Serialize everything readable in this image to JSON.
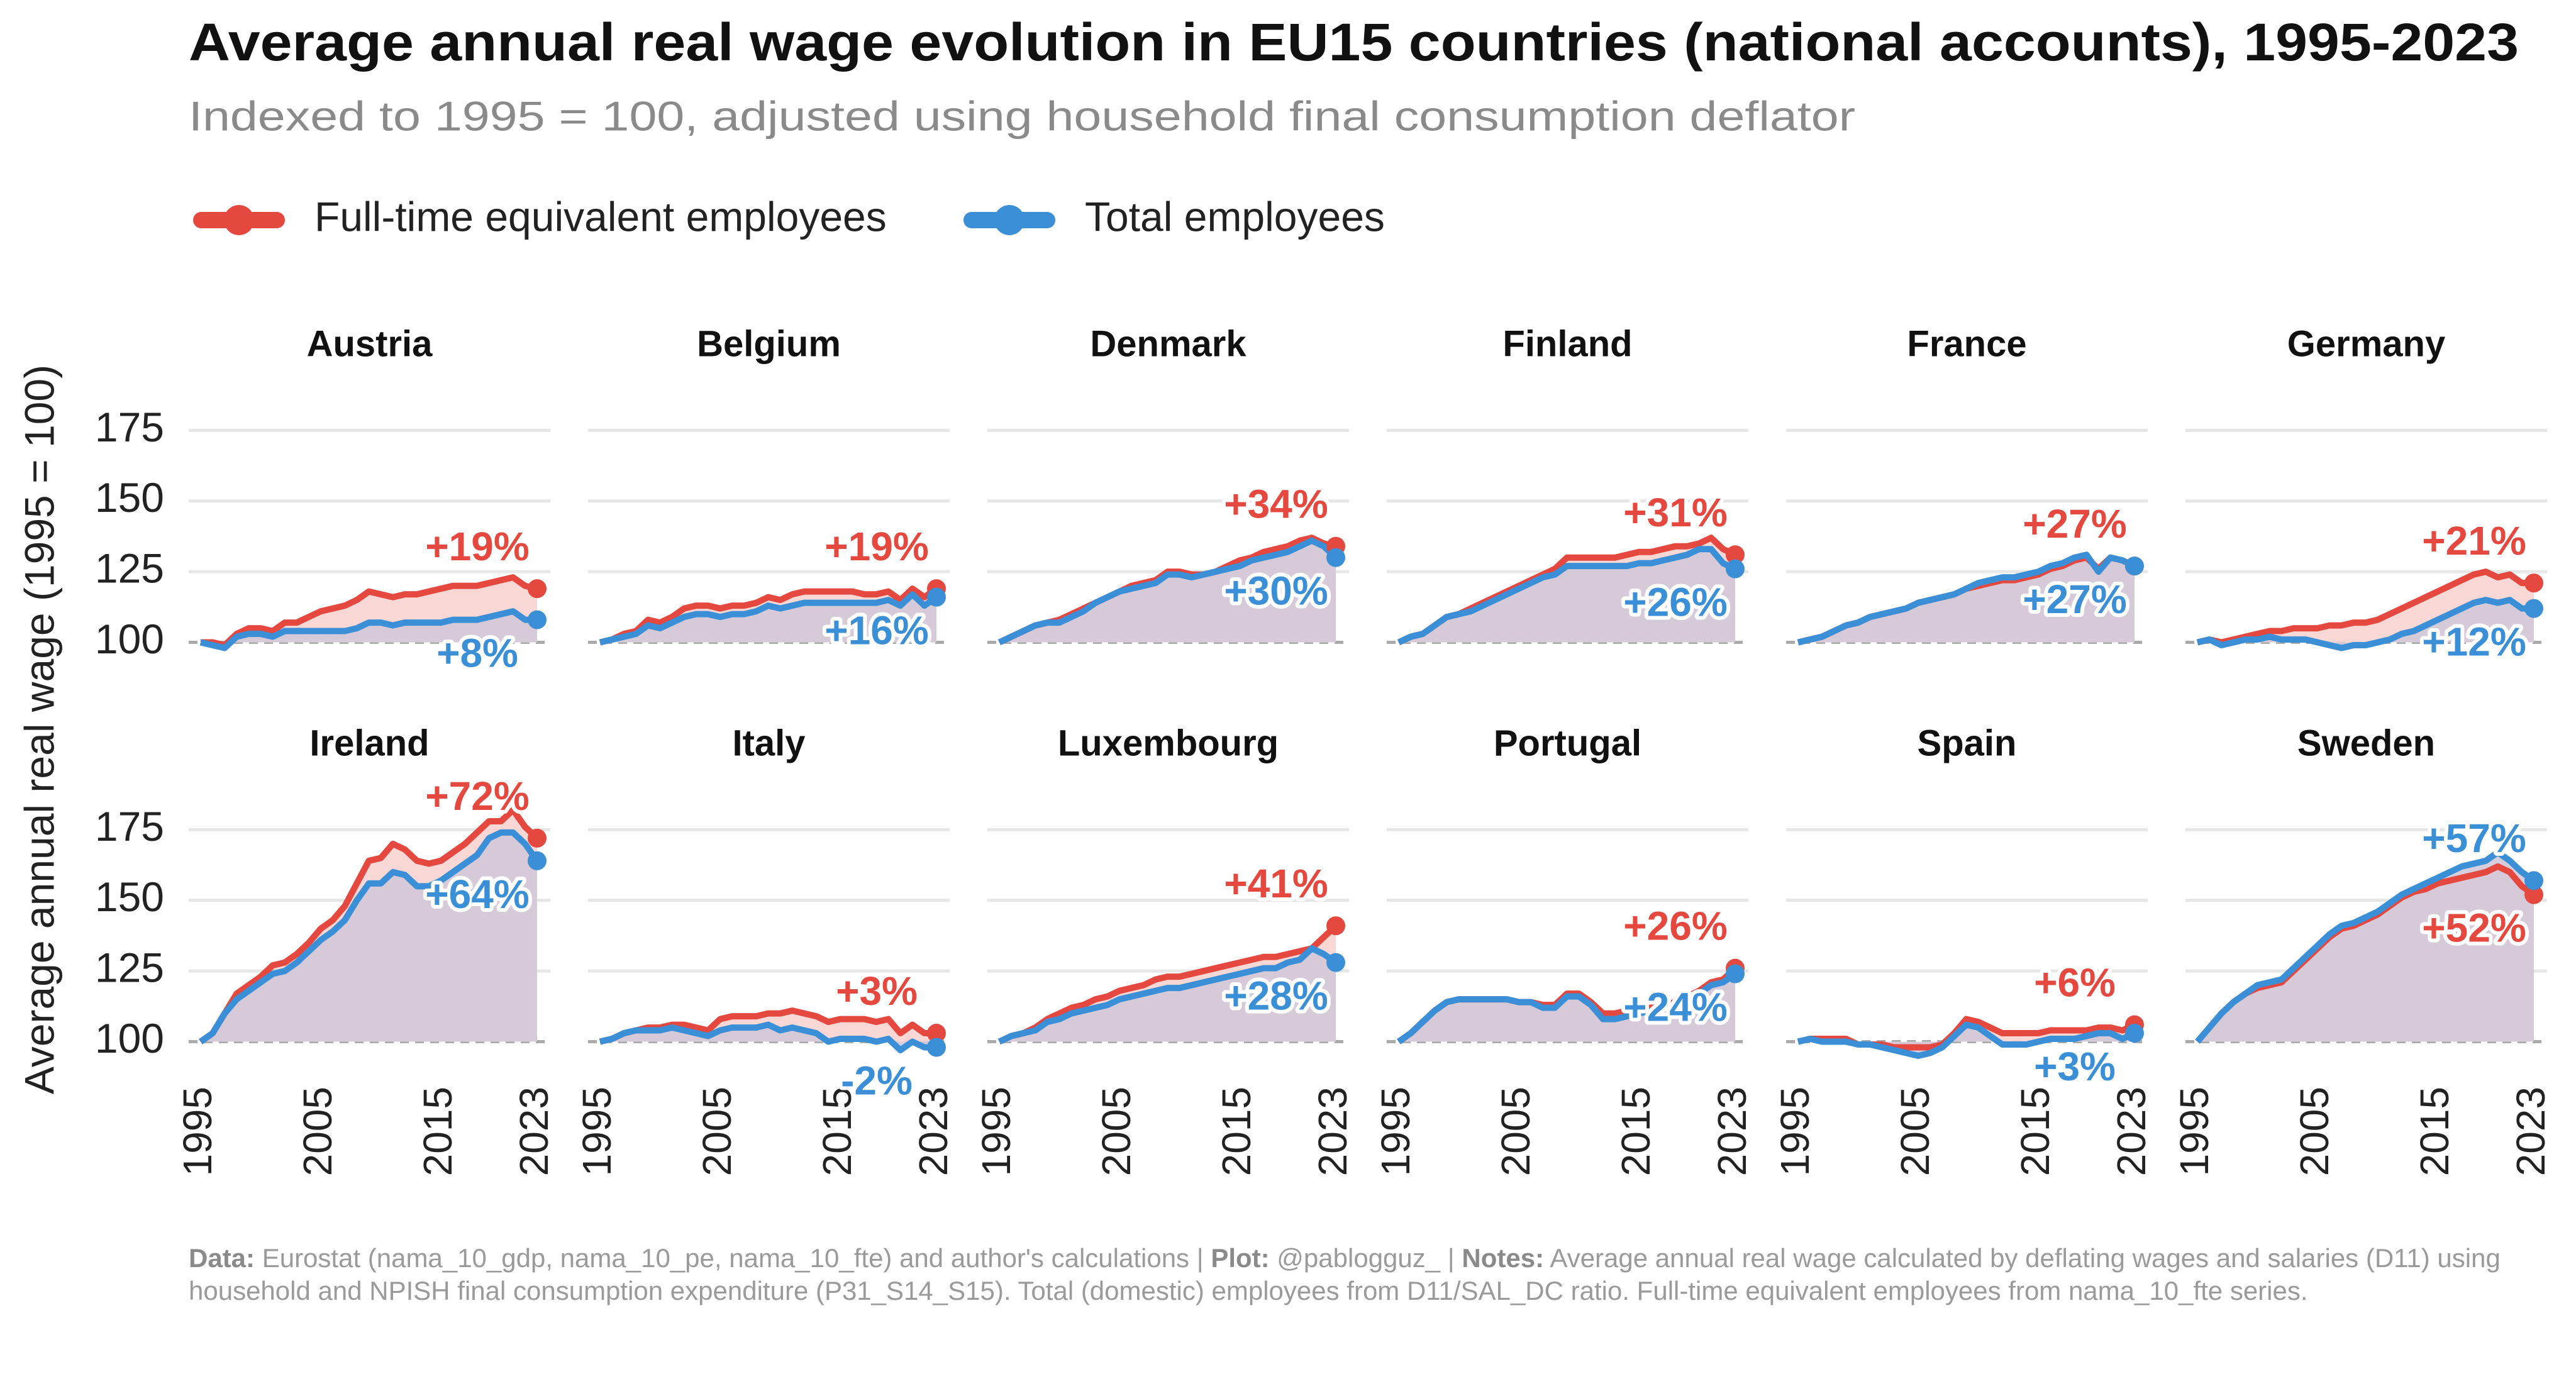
{
  "chart_data": {
    "type": "line",
    "title": "Average annual real wage evolution in EU15 countries (national accounts), 1995-2023",
    "subtitle": "Indexed to 1995 = 100, adjusted using household final consumption deflator",
    "y_label": "Average annual real wage (1995 = 100)",
    "legend": [
      {
        "name": "Full-time equivalent employees",
        "color": "#e5483e"
      },
      {
        "name": "Total employees",
        "color": "#3a8fd6"
      }
    ],
    "x": [
      1995,
      1996,
      1997,
      1998,
      1999,
      2000,
      2001,
      2002,
      2003,
      2004,
      2005,
      2006,
      2007,
      2008,
      2009,
      2010,
      2011,
      2012,
      2013,
      2014,
      2015,
      2016,
      2017,
      2018,
      2019,
      2020,
      2021,
      2022,
      2023
    ],
    "xlim": [
      1995,
      2023
    ],
    "xticks": [
      1995,
      2005,
      2015,
      2023
    ],
    "ylim": [
      93,
      188
    ],
    "yticks": [
      100,
      125,
      150,
      175
    ],
    "grid": true,
    "facets": [
      {
        "title": "Austria",
        "series": [
          {
            "values": [
              100,
              100,
              99,
              103,
              105,
              105,
              104,
              107,
              107,
              109,
              111,
              112,
              113,
              115,
              118,
              117,
              116,
              117,
              117,
              118,
              119,
              120,
              120,
              120,
              121,
              122,
              123,
              120,
              119
            ],
            "end_label": "+19%"
          },
          {
            "values": [
              100,
              99,
              98,
              102,
              103,
              103,
              102,
              104,
              104,
              104,
              104,
              104,
              104,
              105,
              107,
              107,
              106,
              107,
              107,
              107,
              107,
              108,
              108,
              108,
              109,
              110,
              111,
              108,
              108
            ],
            "end_label": "+8%"
          }
        ]
      },
      {
        "title": "Belgium",
        "series": [
          {
            "values": [
              100,
              101,
              103,
              104,
              108,
              107,
              109,
              112,
              113,
              113,
              112,
              113,
              113,
              114,
              116,
              115,
              117,
              118,
              118,
              118,
              118,
              118,
              117,
              117,
              118,
              115,
              119,
              116,
              119
            ],
            "end_label": "+19%"
          },
          {
            "values": [
              100,
              101,
              102,
              103,
              106,
              105,
              107,
              109,
              110,
              110,
              109,
              110,
              110,
              111,
              113,
              112,
              113,
              114,
              114,
              114,
              114,
              114,
              114,
              114,
              115,
              113,
              117,
              113,
              116
            ],
            "end_label": "+16%"
          }
        ]
      },
      {
        "title": "Denmark",
        "series": [
          {
            "values": [
              100,
              102,
              104,
              106,
              107,
              108,
              110,
              112,
              114,
              116,
              118,
              120,
              121,
              122,
              125,
              125,
              124,
              124,
              125,
              127,
              129,
              130,
              132,
              133,
              134,
              136,
              137,
              135,
              134
            ],
            "end_label": "+34%"
          },
          {
            "values": [
              100,
              102,
              104,
              106,
              107,
              107,
              109,
              111,
              114,
              116,
              118,
              119,
              120,
              121,
              124,
              124,
              123,
              124,
              125,
              126,
              127,
              129,
              130,
              131,
              132,
              134,
              136,
              134,
              130
            ],
            "end_label": "+30%"
          }
        ]
      },
      {
        "title": "Finland",
        "series": [
          {
            "values": [
              100,
              102,
              103,
              106,
              109,
              110,
              112,
              114,
              116,
              118,
              120,
              122,
              124,
              126,
              130,
              130,
              130,
              130,
              130,
              131,
              132,
              132,
              133,
              134,
              134,
              135,
              137,
              133,
              131
            ],
            "end_label": "+31%"
          },
          {
            "values": [
              100,
              102,
              103,
              106,
              109,
              110,
              111,
              113,
              115,
              117,
              119,
              121,
              123,
              124,
              127,
              127,
              127,
              127,
              127,
              127,
              128,
              128,
              129,
              130,
              131,
              133,
              133,
              128,
              126
            ],
            "end_label": "+26%"
          }
        ]
      },
      {
        "title": "France",
        "series": [
          {
            "values": [
              100,
              101,
              102,
              104,
              106,
              107,
              109,
              110,
              111,
              112,
              114,
              115,
              116,
              117,
              119,
              120,
              121,
              122,
              122,
              123,
              124,
              126,
              127,
              129,
              130,
              126,
              130,
              129,
              127
            ],
            "end_label": "+27%"
          },
          {
            "values": [
              100,
              101,
              102,
              104,
              106,
              107,
              109,
              110,
              111,
              112,
              114,
              115,
              116,
              117,
              119,
              121,
              122,
              123,
              123,
              124,
              125,
              127,
              128,
              130,
              131,
              125,
              130,
              129,
              127
            ],
            "end_label": "+27%"
          }
        ]
      },
      {
        "title": "Germany",
        "series": [
          {
            "values": [
              100,
              101,
              100,
              101,
              102,
              103,
              104,
              104,
              105,
              105,
              105,
              106,
              106,
              107,
              107,
              108,
              110,
              112,
              114,
              116,
              118,
              120,
              122,
              124,
              125,
              123,
              124,
              121,
              121
            ],
            "end_label": "+21%"
          },
          {
            "values": [
              100,
              101,
              99,
              100,
              101,
              101,
              102,
              101,
              101,
              101,
              100,
              99,
              98,
              99,
              99,
              100,
              101,
              103,
              104,
              106,
              108,
              110,
              112,
              114,
              115,
              114,
              115,
              112,
              112
            ],
            "end_label": "+12%"
          }
        ]
      },
      {
        "title": "Ireland",
        "series": [
          {
            "values": [
              100,
              103,
              110,
              117,
              120,
              123,
              127,
              128,
              131,
              135,
              140,
              143,
              148,
              156,
              164,
              165,
              170,
              168,
              164,
              163,
              164,
              167,
              170,
              174,
              178,
              178,
              182,
              176,
              172
            ],
            "end_label": "+72%"
          },
          {
            "values": [
              100,
              103,
              110,
              115,
              118,
              121,
              124,
              125,
              128,
              132,
              136,
              139,
              143,
              150,
              156,
              156,
              160,
              159,
              155,
              155,
              157,
              160,
              163,
              166,
              172,
              174,
              174,
              170,
              164
            ],
            "end_label": "+64%"
          }
        ]
      },
      {
        "title": "Italy",
        "series": [
          {
            "values": [
              100,
              101,
              103,
              104,
              105,
              105,
              106,
              106,
              105,
              104,
              108,
              109,
              109,
              109,
              110,
              110,
              111,
              110,
              109,
              107,
              108,
              108,
              108,
              107,
              108,
              103,
              106,
              103,
              103
            ],
            "end_label": "+3%"
          },
          {
            "values": [
              100,
              101,
              103,
              104,
              104,
              104,
              105,
              104,
              103,
              102,
              104,
              105,
              105,
              105,
              106,
              104,
              105,
              104,
              103,
              100,
              101,
              101,
              101,
              100,
              101,
              97,
              100,
              98,
              98
            ],
            "end_label": "-2%"
          }
        ]
      },
      {
        "title": "Luxembourg",
        "series": [
          {
            "values": [
              100,
              102,
              103,
              105,
              108,
              110,
              112,
              113,
              115,
              116,
              118,
              119,
              120,
              122,
              123,
              123,
              124,
              125,
              126,
              127,
              128,
              129,
              130,
              130,
              131,
              132,
              133,
              137,
              141
            ],
            "end_label": "+41%"
          },
          {
            "values": [
              100,
              102,
              103,
              104,
              107,
              108,
              110,
              111,
              112,
              113,
              115,
              116,
              117,
              118,
              119,
              119,
              120,
              121,
              122,
              123,
              124,
              125,
              126,
              126,
              128,
              129,
              133,
              131,
              128
            ],
            "end_label": "+28%"
          }
        ]
      },
      {
        "title": "Portugal",
        "series": [
          {
            "values": [
              100,
              103,
              107,
              111,
              114,
              115,
              115,
              115,
              115,
              115,
              114,
              114,
              113,
              113,
              117,
              117,
              114,
              110,
              110,
              111,
              112,
              112,
              113,
              114,
              116,
              118,
              121,
              122,
              126
            ],
            "end_label": "+26%"
          },
          {
            "values": [
              100,
              103,
              107,
              111,
              114,
              115,
              115,
              115,
              115,
              115,
              114,
              114,
              112,
              112,
              116,
              116,
              113,
              108,
              108,
              109,
              110,
              111,
              112,
              113,
              115,
              117,
              120,
              121,
              124
            ],
            "end_label": "+24%"
          }
        ]
      },
      {
        "title": "Spain",
        "series": [
          {
            "values": [
              100,
              101,
              101,
              101,
              101,
              99,
              99,
              99,
              98,
              98,
              98,
              98,
              99,
              103,
              108,
              107,
              105,
              103,
              103,
              103,
              103,
              104,
              104,
              104,
              104,
              105,
              105,
              104,
              106
            ],
            "end_label": "+6%"
          },
          {
            "values": [
              100,
              101,
              100,
              100,
              100,
              99,
              99,
              98,
              97,
              96,
              95,
              96,
              98,
              102,
              106,
              105,
              102,
              99,
              99,
              99,
              100,
              101,
              101,
              101,
              102,
              103,
              103,
              101,
              103
            ],
            "end_label": "+3%"
          }
        ]
      },
      {
        "title": "Sweden",
        "series": [
          {
            "values": [
              100,
              105,
              110,
              114,
              117,
              119,
              120,
              121,
              125,
              129,
              133,
              137,
              140,
              141,
              143,
              145,
              148,
              151,
              153,
              154,
              156,
              157,
              158,
              159,
              160,
              162,
              160,
              155,
              152
            ],
            "end_label": "+52%"
          },
          {
            "values": [
              100,
              105,
              110,
              114,
              117,
              120,
              121,
              122,
              126,
              130,
              134,
              138,
              141,
              142,
              144,
              146,
              149,
              152,
              154,
              156,
              158,
              160,
              162,
              163,
              164,
              167,
              164,
              160,
              157
            ],
            "end_label": "+57%"
          }
        ]
      }
    ],
    "caption": [
      {
        "label": "Data:",
        "text": "Eurostat (nama_10_gdp, nama_10_pe, nama_10_fte) and author's calculations |"
      },
      {
        "label": "Plot:",
        "text": "@pablogguz_ |"
      },
      {
        "label": "Notes:",
        "text": "Average annual real wage calculated by deflating wages and salaries (D11) using household and NPISH final consumption expenditure (P31_S14_S15). Total (domestic) employees from D11/SAL_DC ratio. Full-time equivalent employees from nama_10_fte series."
      }
    ]
  }
}
